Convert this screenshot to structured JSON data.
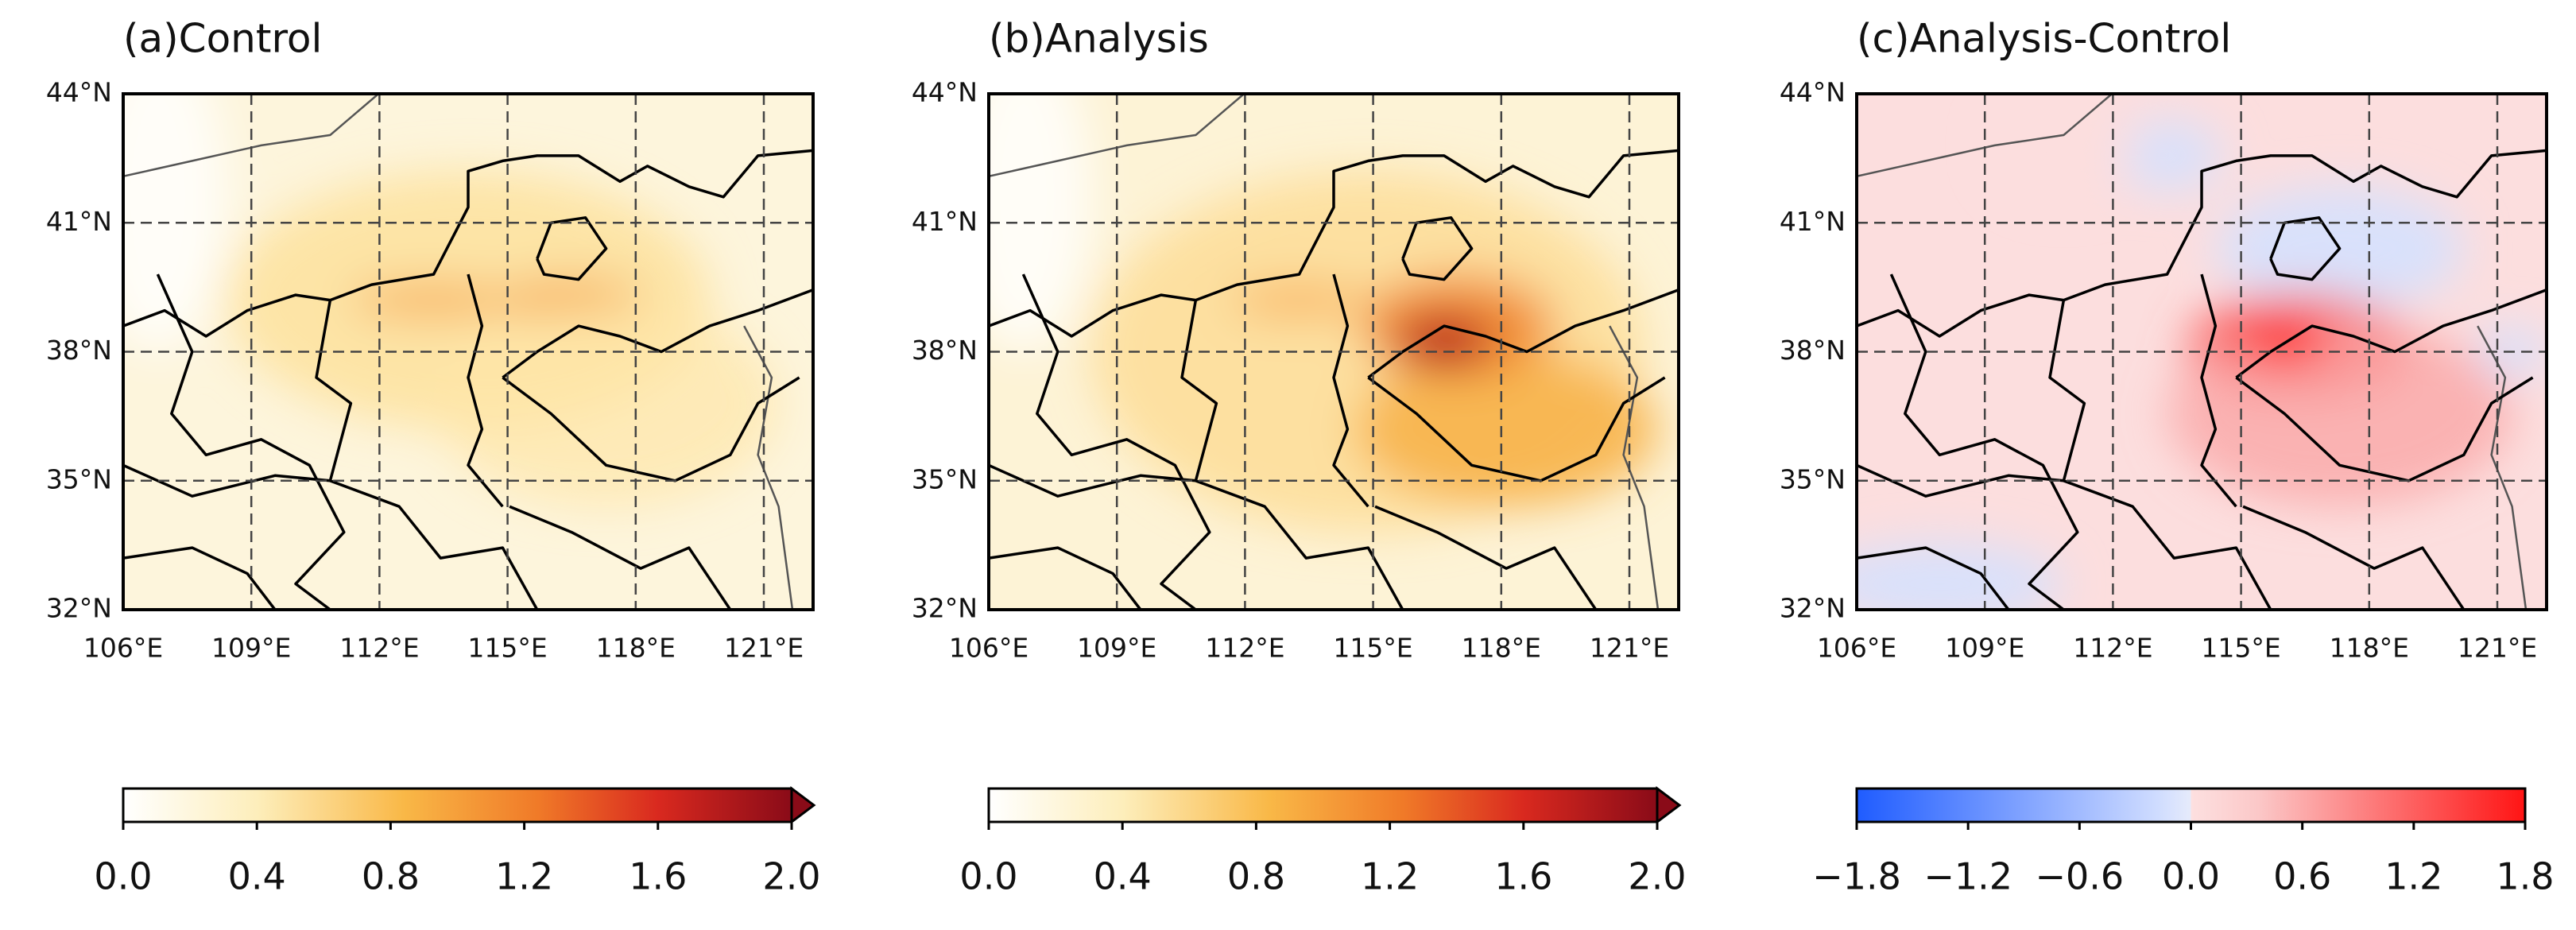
{
  "panels": [
    {
      "title": "(a)Control",
      "lat_labels": [
        "44°N",
        "41°N",
        "38°N",
        "35°N",
        "32°N"
      ],
      "lon_labels": [
        "106°E",
        "109°E",
        "112°E",
        "115°E",
        "118°E",
        "121°E"
      ],
      "colorbar": {
        "ticks": [
          {
            "value": 0,
            "label": "0.0"
          },
          {
            "value": 0.4,
            "label": "0.4"
          },
          {
            "value": 0.8,
            "label": "0.8"
          },
          {
            "value": 1.2,
            "label": "1.2"
          },
          {
            "value": 1.6,
            "label": "1.6"
          },
          {
            "value": 2,
            "label": "2.0"
          }
        ]
      }
    },
    {
      "title": "(b)Analysis",
      "lat_labels": [
        "44°N",
        "41°N",
        "38°N",
        "35°N",
        "32°N"
      ],
      "lon_labels": [
        "106°E",
        "109°E",
        "112°E",
        "115°E",
        "118°E",
        "121°E"
      ],
      "colorbar": {
        "ticks": [
          {
            "value": 0,
            "label": "0.0"
          },
          {
            "value": 0.4,
            "label": "0.4"
          },
          {
            "value": 0.8,
            "label": "0.8"
          },
          {
            "value": 1.2,
            "label": "1.2"
          },
          {
            "value": 1.6,
            "label": "1.6"
          },
          {
            "value": 2,
            "label": "2.0"
          }
        ]
      }
    },
    {
      "title": "(c)Analysis-Control",
      "lat_labels": [
        "44°N",
        "41°N",
        "38°N",
        "35°N",
        "32°N"
      ],
      "lon_labels": [
        "106°E",
        "109°E",
        "112°E",
        "115°E",
        "118°E",
        "121°E"
      ],
      "colorbar": {
        "ticks": [
          {
            "value": -1.8,
            "label": "−1.8"
          },
          {
            "value": -1.2,
            "label": "−1.2"
          },
          {
            "value": -0.6,
            "label": "−0.6"
          },
          {
            "value": 0,
            "label": "0.0"
          },
          {
            "value": 0.6,
            "label": "0.6"
          },
          {
            "value": 1.2,
            "label": "1.2"
          },
          {
            "value": 1.8,
            "label": "1.8"
          }
        ]
      }
    }
  ]
}
